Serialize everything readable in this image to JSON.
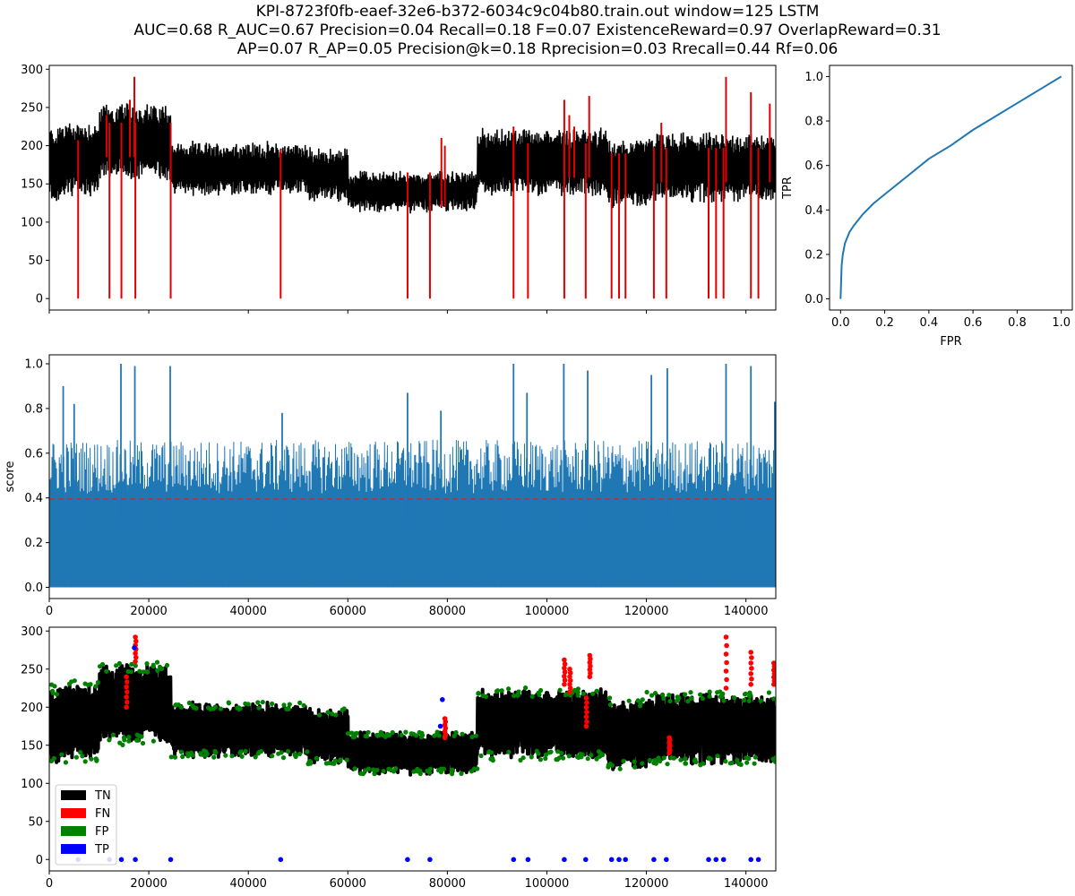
{
  "title_lines": [
    "KPI-8723f0fb-eaef-32e6-b372-6034c9c04b80.train.out     window=125   LSTM",
    "AUC=0.68     R_AUC=0.67     Precision=0.04     Recall=0.18     F=0.07     ExistenceReward=0.97   OverlapReward=0.31",
    "AP=0.07     R_AP=0.05     Precision@k=0.18     Rprecision=0.03     Rrecall=0.44    Rf=0.06"
  ],
  "colors": {
    "signal": "#000000",
    "anomaly": "#e00000",
    "score": "#1f77b4",
    "threshold": "#d62728",
    "tn": "#000000",
    "fn": "#ff0000",
    "fp": "#008000",
    "tp": "#0000ff"
  },
  "chart_data": [
    {
      "type": "line",
      "panel": "timeseries",
      "xlim": [
        0,
        146000
      ],
      "ylim": [
        -15,
        305
      ],
      "yticks": [
        0,
        50,
        100,
        150,
        200,
        250,
        300
      ],
      "xlabel": "",
      "ylabel": "",
      "anomaly_drop_x": [
        5800,
        12100,
        14500,
        17300,
        24400,
        46500,
        72000,
        76500,
        93300,
        96200,
        103500,
        107800,
        113000,
        114500,
        115800,
        121500,
        124000,
        132500,
        134000,
        135500,
        141000,
        142500
      ],
      "anomaly_spikes": [
        [
          11500,
          240
        ],
        [
          16200,
          260
        ],
        [
          17100,
          290
        ],
        [
          78800,
          210
        ],
        [
          79500,
          200
        ],
        [
          93300,
          225
        ],
        [
          103500,
          260
        ],
        [
          104500,
          240
        ],
        [
          105500,
          225
        ],
        [
          108500,
          265
        ],
        [
          123000,
          230
        ],
        [
          136000,
          290
        ],
        [
          141000,
          270
        ],
        [
          144800,
          255
        ]
      ]
    },
    {
      "type": "line",
      "panel": "score",
      "xlim": [
        0,
        146000
      ],
      "ylim": [
        -0.05,
        1.04
      ],
      "yticks": [
        0.0,
        0.2,
        0.4,
        0.6,
        0.8,
        1.0
      ],
      "xticks": [
        0,
        20000,
        40000,
        60000,
        80000,
        100000,
        120000,
        140000
      ],
      "xlabel": "",
      "ylabel": "score",
      "threshold": 0.395,
      "score_peaks": [
        [
          2800,
          0.9
        ],
        [
          5000,
          0.82
        ],
        [
          14400,
          1.0
        ],
        [
          17200,
          0.99
        ],
        [
          24300,
          0.99
        ],
        [
          46800,
          0.78
        ],
        [
          72000,
          0.87
        ],
        [
          78700,
          0.79
        ],
        [
          93300,
          1.0
        ],
        [
          96000,
          0.87
        ],
        [
          103400,
          1.0
        ],
        [
          108200,
          0.97
        ],
        [
          121000,
          0.95
        ],
        [
          124200,
          0.98
        ],
        [
          136000,
          1.0
        ],
        [
          141000,
          0.99
        ],
        [
          145800,
          0.83
        ]
      ]
    },
    {
      "type": "scatter",
      "panel": "classification",
      "xlim": [
        0,
        146000
      ],
      "ylim": [
        -15,
        305
      ],
      "yticks": [
        0,
        50,
        100,
        150,
        200,
        250,
        300
      ],
      "xticks": [
        0,
        20000,
        40000,
        60000,
        80000,
        100000,
        120000,
        140000
      ],
      "xlabel": "",
      "ylabel": "",
      "legend": [
        "TN",
        "FN",
        "FP",
        "TP"
      ],
      "legend_position": "lower-left",
      "tp_zero_x": [
        5800,
        12100,
        14500,
        17300,
        24400,
        46500,
        72000,
        76500,
        93300,
        96200,
        103500,
        107800,
        113000,
        114500,
        115800,
        121500,
        124000,
        132500,
        134000,
        135500,
        141000,
        142500
      ]
    },
    {
      "type": "line",
      "panel": "roc",
      "xlim": [
        -0.05,
        1.05
      ],
      "ylim": [
        -0.05,
        1.05
      ],
      "xticks": [
        0.0,
        0.2,
        0.4,
        0.6,
        0.8,
        1.0
      ],
      "yticks": [
        0.0,
        0.2,
        0.4,
        0.6,
        0.8,
        1.0
      ],
      "xlabel": "FPR",
      "ylabel": "TPR",
      "fpr": [
        0,
        0.005,
        0.01,
        0.02,
        0.04,
        0.06,
        0.1,
        0.15,
        0.2,
        0.3,
        0.4,
        0.5,
        0.6,
        0.7,
        0.8,
        0.9,
        1.0
      ],
      "tpr": [
        0,
        0.15,
        0.2,
        0.25,
        0.3,
        0.33,
        0.38,
        0.43,
        0.47,
        0.55,
        0.63,
        0.69,
        0.76,
        0.82,
        0.88,
        0.94,
        1.0
      ]
    }
  ]
}
